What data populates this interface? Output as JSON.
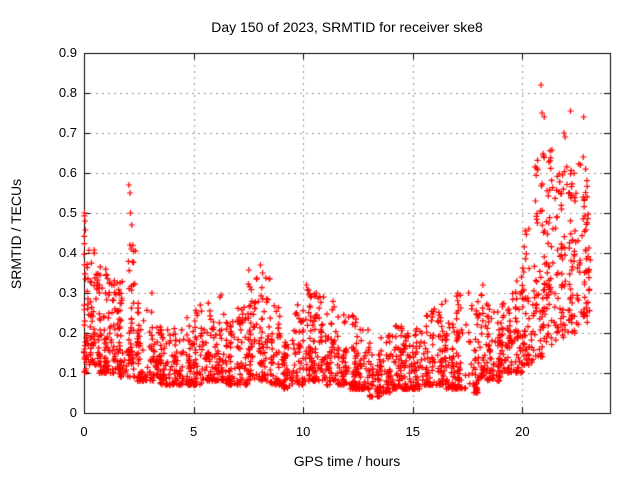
{
  "figure": {
    "background": "#ffffff"
  },
  "chart_data": {
    "type": "scatter",
    "title": "Day 150 of 2023, SRMTID for receiver ske8",
    "xlabel": "GPS time / hours",
    "ylabel": "SRMTID / TECUs",
    "xlim": [
      0,
      24
    ],
    "ylim": [
      0,
      0.9
    ],
    "xticks": [
      0,
      5,
      10,
      15,
      20
    ],
    "xtick_labels": [
      "0",
      "5",
      "10",
      "15",
      "20"
    ],
    "yticks": [
      0,
      0.1,
      0.2,
      0.3,
      0.4,
      0.5,
      0.6,
      0.7,
      0.8,
      0.9
    ],
    "ytick_labels": [
      "0",
      "0.1",
      "0.2",
      "0.3",
      "0.4",
      "0.5",
      "0.6",
      "0.7",
      "0.8",
      "0.9"
    ],
    "grid": "dotted",
    "legend": "none",
    "marker": "plus",
    "marker_size_px": 7,
    "marker_color": "#ff0000",
    "grid_color": "#9a9a9a",
    "axis_color": "#000000",
    "data_time_range_hours": [
      0,
      23.1
    ],
    "description": "Dense scatter of SRMTID values vs GPS time; ~0.1-0.5 TECUs near hour 0 decaying to a 0.07-0.2 band through midday with bursts to ~0.3-0.37 near hours 2, 8, 10-11 and 16-18, then rising steeply after hour 20 to peaks of ~0.82 TECUs near hour 21.",
    "density_bins": [
      [
        0.0,
        0.3,
        48,
        0.1,
        0.5,
        1.5
      ],
      [
        0.3,
        0.7,
        48,
        0.12,
        0.42,
        1.7
      ],
      [
        0.7,
        1.0,
        42,
        0.1,
        0.38,
        1.8
      ],
      [
        1.0,
        1.5,
        54,
        0.1,
        0.36,
        1.8
      ],
      [
        1.5,
        2.0,
        54,
        0.09,
        0.33,
        1.9
      ],
      [
        2.0,
        2.4,
        48,
        0.09,
        0.42,
        1.8
      ],
      [
        2.4,
        3.0,
        54,
        0.08,
        0.3,
        2.0
      ],
      [
        3.0,
        3.5,
        48,
        0.08,
        0.26,
        2.0
      ],
      [
        3.5,
        4.0,
        48,
        0.07,
        0.22,
        2.0
      ],
      [
        4.0,
        4.5,
        48,
        0.07,
        0.22,
        2.0
      ],
      [
        4.5,
        5.0,
        48,
        0.07,
        0.26,
        2.0
      ],
      [
        5.0,
        5.5,
        48,
        0.07,
        0.27,
        2.0
      ],
      [
        5.5,
        6.0,
        48,
        0.08,
        0.31,
        1.9
      ],
      [
        6.0,
        6.5,
        48,
        0.08,
        0.3,
        1.9
      ],
      [
        6.5,
        7.0,
        48,
        0.07,
        0.24,
        2.0
      ],
      [
        7.0,
        7.5,
        48,
        0.07,
        0.27,
        2.0
      ],
      [
        7.5,
        8.0,
        54,
        0.08,
        0.36,
        1.7
      ],
      [
        8.0,
        8.5,
        54,
        0.08,
        0.35,
        1.7
      ],
      [
        8.5,
        9.0,
        48,
        0.07,
        0.28,
        2.0
      ],
      [
        9.0,
        9.5,
        45,
        0.06,
        0.2,
        2.0
      ],
      [
        9.5,
        10.0,
        48,
        0.07,
        0.3,
        1.8
      ],
      [
        10.0,
        10.5,
        54,
        0.08,
        0.31,
        1.7
      ],
      [
        10.5,
        11.0,
        54,
        0.08,
        0.3,
        1.8
      ],
      [
        11.0,
        11.5,
        48,
        0.07,
        0.28,
        2.0
      ],
      [
        11.5,
        12.0,
        48,
        0.07,
        0.25,
        2.0
      ],
      [
        12.0,
        12.5,
        48,
        0.06,
        0.25,
        2.0
      ],
      [
        12.5,
        13.0,
        48,
        0.06,
        0.22,
        2.0
      ],
      [
        13.0,
        13.5,
        45,
        0.04,
        0.18,
        2.0
      ],
      [
        13.5,
        14.0,
        45,
        0.05,
        0.2,
        2.0
      ],
      [
        14.0,
        14.5,
        48,
        0.06,
        0.22,
        2.0
      ],
      [
        14.5,
        15.0,
        48,
        0.06,
        0.2,
        2.0
      ],
      [
        15.0,
        15.5,
        48,
        0.06,
        0.22,
        2.0
      ],
      [
        15.5,
        16.0,
        48,
        0.07,
        0.26,
        2.0
      ],
      [
        16.0,
        16.5,
        48,
        0.07,
        0.28,
        1.9
      ],
      [
        16.5,
        17.0,
        48,
        0.06,
        0.25,
        2.0
      ],
      [
        17.0,
        17.5,
        48,
        0.06,
        0.3,
        1.9
      ],
      [
        17.5,
        18.0,
        48,
        0.05,
        0.28,
        2.0
      ],
      [
        18.0,
        18.5,
        48,
        0.08,
        0.31,
        1.9
      ],
      [
        18.5,
        19.0,
        48,
        0.08,
        0.26,
        1.9
      ],
      [
        19.0,
        19.5,
        48,
        0.1,
        0.3,
        1.8
      ],
      [
        19.5,
        20.0,
        48,
        0.1,
        0.36,
        1.7
      ],
      [
        20.0,
        20.5,
        52,
        0.12,
        0.46,
        1.6
      ],
      [
        20.5,
        21.0,
        56,
        0.14,
        0.66,
        1.5
      ],
      [
        21.0,
        21.5,
        56,
        0.17,
        0.66,
        1.4
      ],
      [
        21.5,
        22.0,
        52,
        0.18,
        0.63,
        1.4
      ],
      [
        22.0,
        22.5,
        52,
        0.2,
        0.62,
        1.4
      ],
      [
        22.5,
        23.0,
        52,
        0.22,
        0.64,
        1.4
      ],
      [
        23.0,
        23.1,
        10,
        0.25,
        0.55,
        1.5
      ]
    ],
    "outliers": [
      [
        0.02,
        0.5
      ],
      [
        0.05,
        0.48
      ],
      [
        2.05,
        0.57
      ],
      [
        2.1,
        0.55
      ],
      [
        2.12,
        0.5
      ],
      [
        2.18,
        0.47
      ],
      [
        2.1,
        0.42
      ],
      [
        2.15,
        0.41
      ],
      [
        3.1,
        0.3
      ],
      [
        8.05,
        0.37
      ],
      [
        8.15,
        0.35
      ],
      [
        10.15,
        0.32
      ],
      [
        10.6,
        0.3
      ],
      [
        16.5,
        0.28
      ],
      [
        17.55,
        0.3
      ],
      [
        18.2,
        0.32
      ],
      [
        20.3,
        0.46
      ],
      [
        20.6,
        0.53
      ],
      [
        20.85,
        0.82
      ],
      [
        20.9,
        0.75
      ],
      [
        21.0,
        0.74
      ],
      [
        21.9,
        0.7
      ],
      [
        21.95,
        0.69
      ],
      [
        22.2,
        0.755
      ],
      [
        22.8,
        0.74
      ],
      [
        22.78,
        0.64
      ]
    ]
  }
}
